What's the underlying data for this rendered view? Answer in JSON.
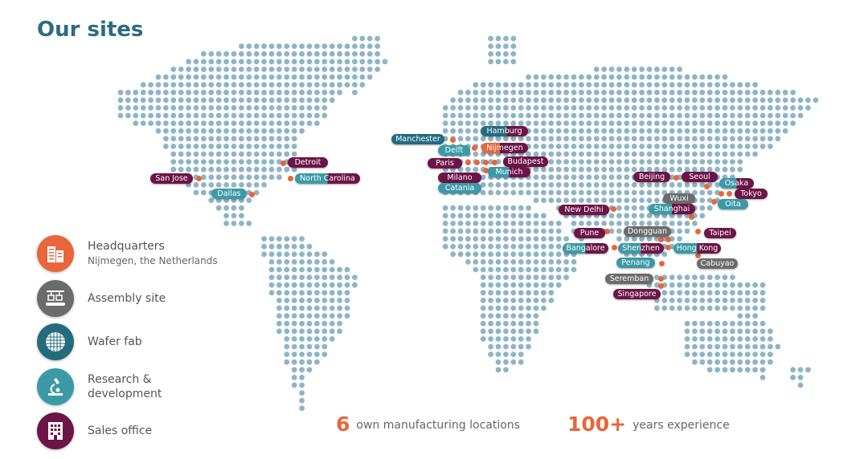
{
  "title": "Our sites",
  "colors": {
    "dots": "#8fb4c6",
    "site_marker": "#e8663a",
    "headquarters": "#e8663a",
    "assembly": "#6b6b6b",
    "wafer_fab": "#246b7e",
    "research": "#3b9aa6",
    "sales": "#6d1448"
  },
  "legend": [
    {
      "label": "Headquarters",
      "sublabel": "Nijmegen, the Netherlands",
      "icon": "building-icon"
    },
    {
      "label": "Assembly site",
      "icon": "assembly-line-icon"
    },
    {
      "label": "Wafer fab",
      "icon": "wafer-icon"
    },
    {
      "label": "Research & development",
      "icon": "microscope-icon"
    },
    {
      "label": "Sales office",
      "icon": "office-icon"
    }
  ],
  "sites": {
    "san_jose": {
      "name": "San Jose",
      "types": [
        "sales"
      ]
    },
    "detroit": {
      "name": "Detroit",
      "types": [
        "sales"
      ]
    },
    "north_carolina": {
      "name": "North Carolina",
      "types": [
        "research",
        "sales"
      ]
    },
    "dallas": {
      "name": "Dallas",
      "types": [
        "research"
      ]
    },
    "manchester": {
      "name": "Manchester",
      "types": [
        "wafer_fab"
      ]
    },
    "hamburg": {
      "name": "Hamburg",
      "types": [
        "wafer_fab",
        "sales"
      ]
    },
    "delft": {
      "name": "Delft",
      "types": [
        "research"
      ]
    },
    "nijmegen": {
      "name": "Nijmegen",
      "types": [
        "headquarters",
        "sales"
      ]
    },
    "paris": {
      "name": "Paris",
      "types": [
        "sales"
      ]
    },
    "budapest": {
      "name": "Budapest",
      "types": [
        "sales"
      ]
    },
    "munich": {
      "name": "Munich",
      "types": [
        "research",
        "sales"
      ]
    },
    "milano": {
      "name": "Milano",
      "types": [
        "sales"
      ]
    },
    "catania": {
      "name": "Catania",
      "types": [
        "research"
      ]
    },
    "beijing": {
      "name": "Beijing",
      "types": [
        "sales"
      ]
    },
    "seoul": {
      "name": "Seoul",
      "types": [
        "sales"
      ]
    },
    "osaka": {
      "name": "Osaka",
      "types": [
        "research",
        "sales"
      ]
    },
    "tokyo": {
      "name": "Tokyo",
      "types": [
        "sales"
      ]
    },
    "oita": {
      "name": "Oita",
      "types": [
        "research"
      ]
    },
    "wuxi": {
      "name": "Wuxi",
      "types": [
        "assembly"
      ]
    },
    "shanghai": {
      "name": "Shanghai",
      "types": [
        "research",
        "sales"
      ]
    },
    "new_delhi": {
      "name": "New Delhi",
      "types": [
        "sales"
      ]
    },
    "pune": {
      "name": "Pune",
      "types": [
        "sales"
      ]
    },
    "dongguan": {
      "name": "Dongguan",
      "types": [
        "assembly"
      ]
    },
    "taipei": {
      "name": "Taipei",
      "types": [
        "sales"
      ]
    },
    "bangalore": {
      "name": "Bangalore",
      "types": [
        "research",
        "sales"
      ]
    },
    "shenzhen": {
      "name": "Shenzhen",
      "types": [
        "research",
        "sales"
      ]
    },
    "hong_kong": {
      "name": "Hong Kong",
      "types": [
        "research",
        "sales"
      ]
    },
    "penang": {
      "name": "Penang",
      "types": [
        "research"
      ]
    },
    "cabuyao": {
      "name": "Cabuyao",
      "types": [
        "assembly"
      ]
    },
    "seremban": {
      "name": "Seremban",
      "types": [
        "assembly"
      ]
    },
    "singapore": {
      "name": "Singapore",
      "types": [
        "sales"
      ]
    }
  },
  "stats": [
    {
      "value": "6",
      "label": "own manufacturing locations"
    },
    {
      "value": "100+",
      "label": "years experience"
    }
  ]
}
